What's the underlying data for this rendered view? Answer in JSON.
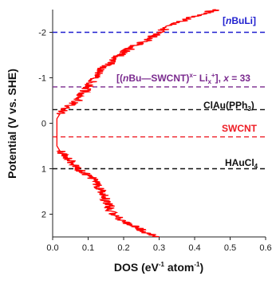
{
  "chart_data": {
    "type": "line",
    "xlabel": "DOS (eV",
    "xlabel_exp1": "-1",
    "xlabel_mid": " atom",
    "xlabel_exp2": "-1",
    "xlabel_end": ")",
    "ylabel": "Potential (V vs. SHE)",
    "xlim": [
      0.0,
      0.6
    ],
    "ylim": [
      2.5,
      -2.5
    ],
    "y_inverted": true,
    "x_ticks": [
      "0.0",
      "0.1",
      "0.2",
      "0.3",
      "0.4",
      "0.5",
      "0.6"
    ],
    "y_ticks": [
      "-2",
      "-1",
      "0",
      "1",
      "2"
    ],
    "grid": false,
    "series": [
      {
        "color": "#ff0000",
        "points": [
          [
            0.3,
            2.5
          ],
          [
            0.26,
            2.4
          ],
          [
            0.24,
            2.3
          ],
          [
            0.21,
            2.2
          ],
          [
            0.19,
            2.1
          ],
          [
            0.17,
            2.0
          ],
          [
            0.16,
            1.9
          ],
          [
            0.16,
            1.8
          ],
          [
            0.15,
            1.7
          ],
          [
            0.15,
            1.6
          ],
          [
            0.14,
            1.5
          ],
          [
            0.13,
            1.4
          ],
          [
            0.12,
            1.3
          ],
          [
            0.11,
            1.2
          ],
          [
            0.09,
            1.1
          ],
          [
            0.07,
            1.0
          ],
          [
            0.06,
            0.9
          ],
          [
            0.05,
            0.8
          ],
          [
            0.03,
            0.7
          ],
          [
            0.02,
            0.6
          ],
          [
            0.012,
            0.5
          ],
          [
            0.012,
            0.3
          ],
          [
            0.012,
            0.1
          ],
          [
            0.012,
            -0.1
          ],
          [
            0.02,
            -0.2
          ],
          [
            0.03,
            -0.3
          ],
          [
            0.05,
            -0.4
          ],
          [
            0.07,
            -0.5
          ],
          [
            0.08,
            -0.6
          ],
          [
            0.09,
            -0.7
          ],
          [
            0.1,
            -0.8
          ],
          [
            0.11,
            -0.9
          ],
          [
            0.12,
            -1.0
          ],
          [
            0.13,
            -1.1
          ],
          [
            0.14,
            -1.2
          ],
          [
            0.16,
            -1.3
          ],
          [
            0.17,
            -1.4
          ],
          [
            0.19,
            -1.5
          ],
          [
            0.21,
            -1.6
          ],
          [
            0.23,
            -1.7
          ],
          [
            0.26,
            -1.8
          ],
          [
            0.28,
            -1.9
          ],
          [
            0.3,
            -2.0
          ],
          [
            0.32,
            -2.1
          ],
          [
            0.35,
            -2.2
          ],
          [
            0.38,
            -2.3
          ],
          [
            0.42,
            -2.4
          ],
          [
            0.46,
            -2.5
          ]
        ]
      }
    ],
    "reference_lines": [
      {
        "y": -2.0,
        "color": "#1f1fcf",
        "label": "[nBuLi]"
      },
      {
        "y": -0.8,
        "color": "#7a2a8e",
        "label": "[(nBu—SWCNT)x− Lix+], x = 33"
      },
      {
        "y": -0.3,
        "color": "#111111",
        "label": "ClAu(PPh3)"
      },
      {
        "y": 0.3,
        "color": "#ee1c24",
        "label": "SWCNT"
      },
      {
        "y": 1.0,
        "color": "#111111",
        "label": "HAuCl4"
      }
    ]
  }
}
